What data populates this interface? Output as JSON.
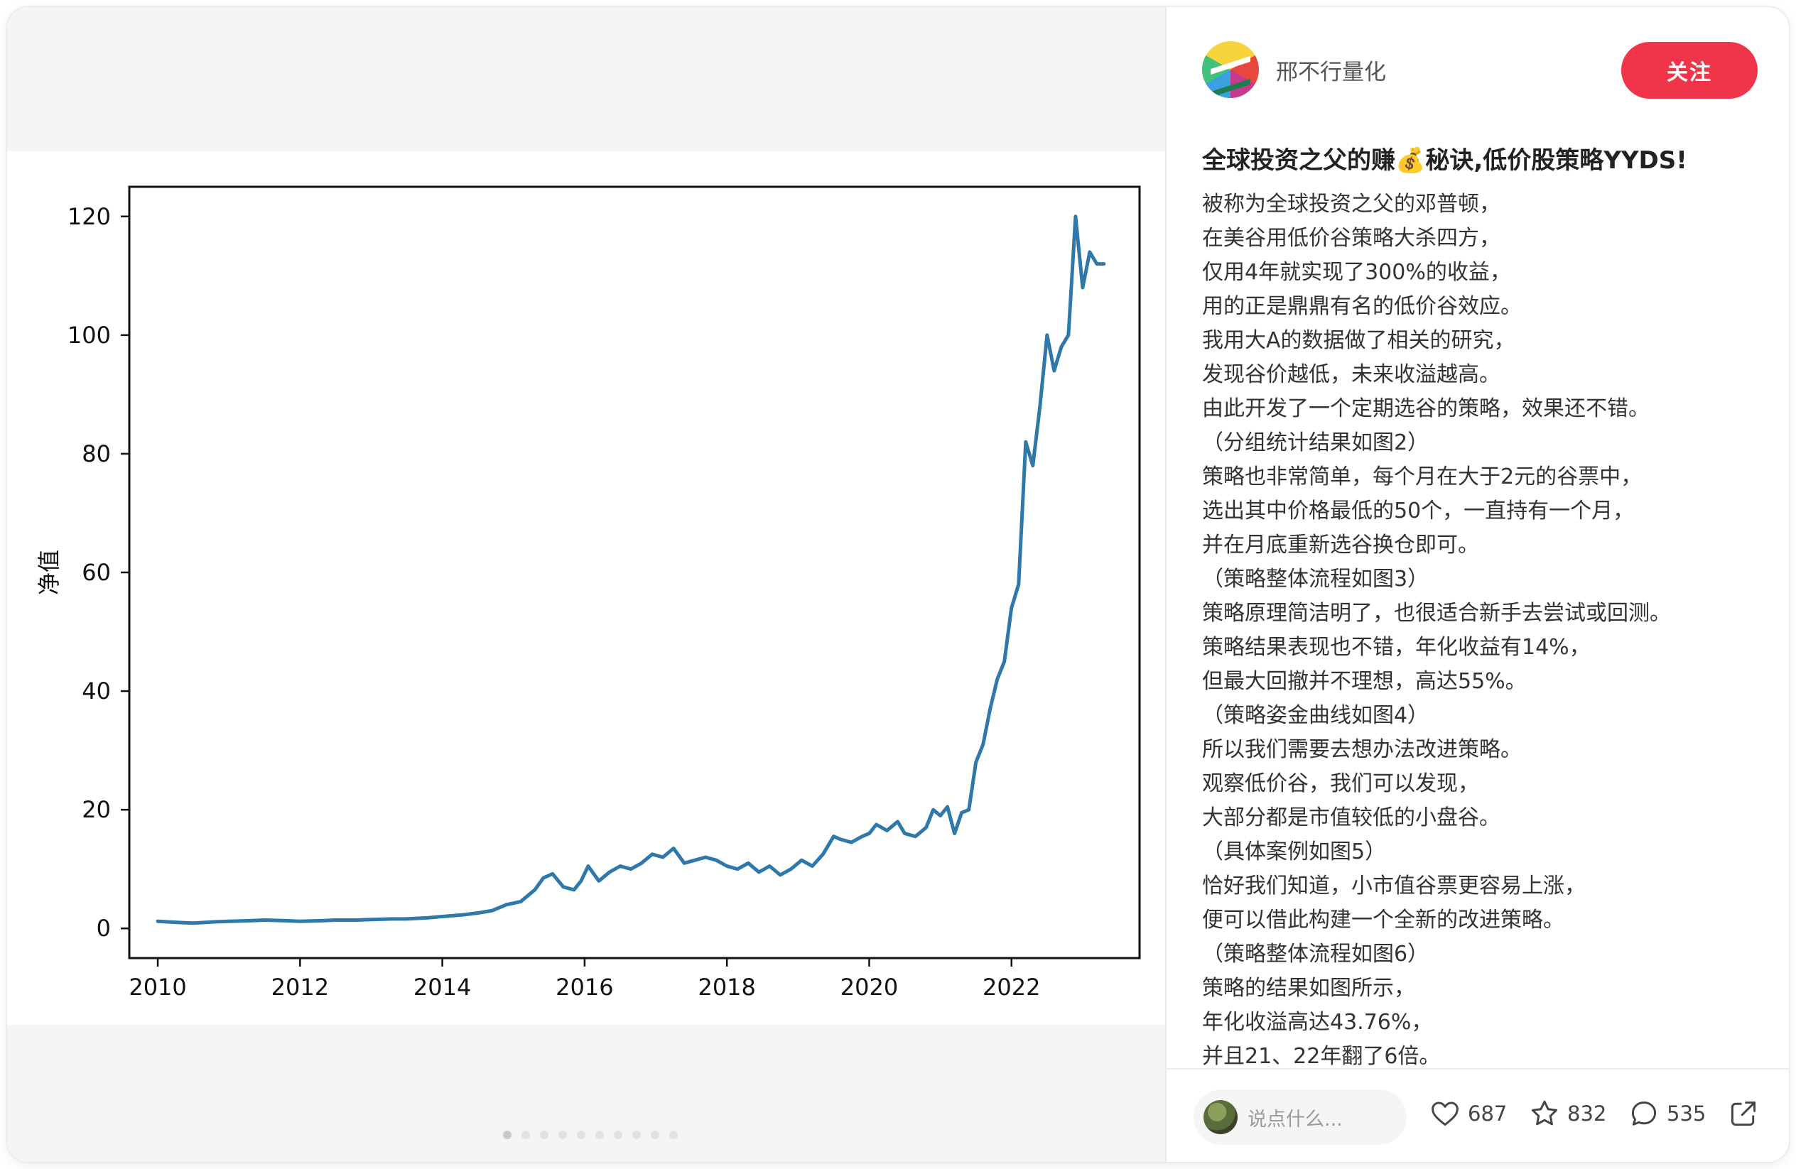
{
  "post": {
    "author": "邢不行量化",
    "follow_label": "关注",
    "title": "全球投资之父的赚💰秘诀,低价股策略YYDS!",
    "body": [
      "被称为全球投资之父的邓普顿，",
      "在美谷用低价谷策略大杀四方，",
      "仅用4年就实现了300%的收益，",
      "用的正是鼎鼎有名的低价谷效应。",
      "我用大A的数据做了相关的研究，",
      "发现谷价越低，未来收溢越高。",
      "由此开发了一个定期选谷的策略，效果还不错。",
      "（分组统计结果如图2）",
      "策略也非常简单，每个月在大于2元的谷票中，",
      "选出其中价格最低的50个，一直持有一个月，",
      "并在月底重新选谷换仓即可。",
      "（策略整体流程如图3）",
      "策略原理简洁明了，也很适合新手去尝试或回测。",
      "策略结果表现也不错，年化收益有14%，",
      "但最大回撤并不理想，高达55%。",
      "（策略姿金曲线如图4）",
      "所以我们需要去想办法改进策略。",
      "观察低价谷，我们可以发现，",
      "大部分都是市值较低的小盘谷。",
      "（具体案例如图5）",
      "恰好我们知道，小市值谷票更容易上涨，",
      "便可以借此构建一个全新的改进策略。",
      "（策略整体流程如图6）",
      "策略的结果如图所示，",
      "年化收溢高达43.76%，",
      "并且21、22年翻了6倍。"
    ]
  },
  "footer": {
    "comment_placeholder": "说点什么...",
    "likes": "687",
    "stars": "832",
    "comments": "535",
    "icons": [
      "heart-icon",
      "star-icon",
      "comment-icon",
      "share-icon"
    ]
  },
  "carousel": {
    "count": 10,
    "active": 0
  },
  "colors": {
    "accent": "#f0344a",
    "line": "#2f78aa"
  },
  "chart_data": {
    "type": "line",
    "ylabel": "净值",
    "xlabel": "",
    "xlim": [
      2009.6,
      2023.8
    ],
    "ylim": [
      -5,
      125
    ],
    "xticks": [
      "2010",
      "2012",
      "2014",
      "2016",
      "2018",
      "2020",
      "2022"
    ],
    "yticks": [
      "0",
      "20",
      "40",
      "60",
      "80",
      "100",
      "120"
    ],
    "series": [
      {
        "name": "",
        "x": [
          2010.0,
          2010.3,
          2010.5,
          2010.8,
          2011.0,
          2011.3,
          2011.5,
          2011.8,
          2012.0,
          2012.3,
          2012.5,
          2012.8,
          2013.0,
          2013.3,
          2013.5,
          2013.8,
          2014.0,
          2014.3,
          2014.5,
          2014.7,
          2014.9,
          2015.1,
          2015.3,
          2015.42,
          2015.55,
          2015.7,
          2015.85,
          2015.95,
          2016.05,
          2016.2,
          2016.35,
          2016.5,
          2016.65,
          2016.8,
          2016.95,
          2017.1,
          2017.25,
          2017.4,
          2017.55,
          2017.7,
          2017.85,
          2018.0,
          2018.15,
          2018.3,
          2018.45,
          2018.6,
          2018.75,
          2018.9,
          2019.05,
          2019.2,
          2019.35,
          2019.5,
          2019.6,
          2019.75,
          2019.9,
          2020.0,
          2020.1,
          2020.25,
          2020.4,
          2020.5,
          2020.65,
          2020.8,
          2020.9,
          2021.0,
          2021.1,
          2021.2,
          2021.3,
          2021.4,
          2021.5,
          2021.6,
          2021.7,
          2021.8,
          2021.9,
          2022.0,
          2022.1,
          2022.2,
          2022.3,
          2022.4,
          2022.5,
          2022.6,
          2022.7,
          2022.8,
          2022.9,
          2023.0,
          2023.1,
          2023.2,
          2023.3
        ],
        "values": [
          1.2,
          1.0,
          0.9,
          1.1,
          1.2,
          1.3,
          1.4,
          1.3,
          1.2,
          1.3,
          1.4,
          1.4,
          1.5,
          1.6,
          1.6,
          1.8,
          2.0,
          2.3,
          2.6,
          3.0,
          4.0,
          4.5,
          6.5,
          8.5,
          9.2,
          7.0,
          6.5,
          8.0,
          10.5,
          8.0,
          9.5,
          10.5,
          10.0,
          11.0,
          12.5,
          12.0,
          13.5,
          11.0,
          11.5,
          12.0,
          11.5,
          10.5,
          10.0,
          11.0,
          9.5,
          10.5,
          9.0,
          10.0,
          11.5,
          10.5,
          12.5,
          15.5,
          15.0,
          14.5,
          15.5,
          16.0,
          17.5,
          16.5,
          18.0,
          16.0,
          15.5,
          17.0,
          20.0,
          19.0,
          20.5,
          16.0,
          19.5,
          20.0,
          28.0,
          31.0,
          37.0,
          42.0,
          45.0,
          54.0,
          58.0,
          82.0,
          78.0,
          88.0,
          100.0,
          94.0,
          98.0,
          100.0,
          120.0,
          108.0,
          114.0,
          112.0,
          112.0
        ]
      }
    ]
  }
}
